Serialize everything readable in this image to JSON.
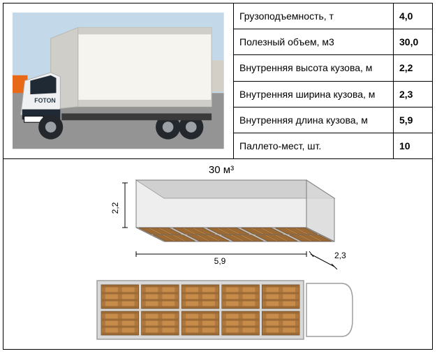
{
  "specs": {
    "rows": [
      {
        "label": "Грузоподъемность, т",
        "value": "4,0"
      },
      {
        "label": "Полезный объем, м3",
        "value": "30,0"
      },
      {
        "label": "Внутренняя высота кузова, м",
        "value": "2,2"
      },
      {
        "label": "Внутренняя ширина кузова, м",
        "value": "2,3"
      },
      {
        "label": "Внутренняя длина кузова, м",
        "value": "5,9"
      },
      {
        "label": "Паллето-мест, шт.",
        "value": "10"
      }
    ],
    "label_fontsize": 14,
    "value_fontsize": 15,
    "border_color": "#000000"
  },
  "truck_photo": {
    "sky_color": "#c3d8e8",
    "pavement_color": "#949494",
    "box_color": "#f5f4ef",
    "box_shadow": "#cfcec8",
    "cab_white": "#eef0f1",
    "cab_trim": "#202a37",
    "tyre": "#24272c",
    "rim": "#9aa0a6",
    "plate_bg": "#ffffff",
    "orange_bg_vehicle": "#e86a18",
    "brand": "FOTON"
  },
  "diagram": {
    "volume_label": "30 м³",
    "volume_fontsize": 15,
    "height_label": "2,2",
    "length_label": "5,9",
    "width_label": "2,3",
    "dim_fontsize": 12,
    "box_fill": "#d9d9d9",
    "box_fill_dark": "#c8c8c8",
    "box_stroke": "#7b7b7b",
    "dim_line": "#000000",
    "pallet_wood": "#c78b4a",
    "pallet_wood_dark": "#9b6a35",
    "pallet_outline": "#6e4a24",
    "pallet_cols": 5,
    "pallet_rows": 2,
    "topview": {
      "bg": "#d9d9d9",
      "stroke": "#9e9e9e"
    }
  }
}
